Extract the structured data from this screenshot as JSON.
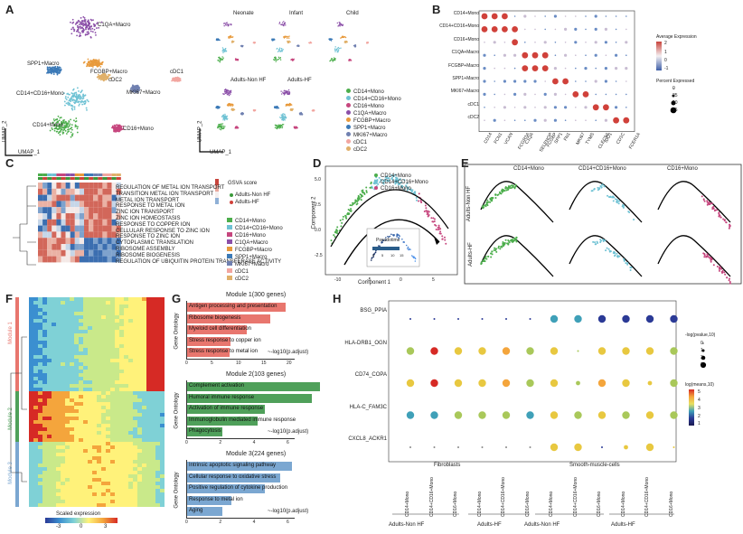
{
  "panels": {
    "a": "A",
    "b": "B",
    "c": "C",
    "d": "D",
    "e": "E",
    "f": "F",
    "g": "G",
    "h": "H"
  },
  "umap": {
    "xlabel": "UMAP_1",
    "ylabel": "UMAP_2",
    "labels": {
      "c1qa": "C1QA+Macro",
      "spp1": "SPP1+Macro",
      "fcgbp": "FCGBP+Macro",
      "cdc2": "cDC2",
      "cdc1": "cDC1",
      "cd14cd16": "CD14+CD16+Mono",
      "mki67": "MKI67+Macro",
      "cd14": "CD14+Mono",
      "cd16": "CD16+Mono"
    },
    "groups": [
      "Neonate",
      "Infant",
      "Child",
      "Adults-Non HF",
      "Adults-HF"
    ],
    "legend": [
      "CD14+Mono",
      "CD14+CD16+Mono",
      "CD16+Mono",
      "C1QA+Macro",
      "FCGBP+Macro",
      "SPP1+Macro",
      "MKI67+Macro",
      "cDC1",
      "cDC2"
    ],
    "colors": [
      "#4cae4c",
      "#6fc2d4",
      "#c6467e",
      "#8b4fa8",
      "#e89a3c",
      "#3c7ab7",
      "#7080b0",
      "#f2a6a0",
      "#e0b06a"
    ]
  },
  "dotplot": {
    "rows": [
      "CD14+Mono",
      "CD14+CD16+Mono",
      "CD16+Mono",
      "C1QA+Macro",
      "FCGBP+Macro",
      "SPP1+Macro",
      "MKI67+Macro",
      "cDC1",
      "cDC2"
    ],
    "cols": [
      "CD14",
      "FCN1",
      "VCAN",
      "FCGR3A",
      "C1QA",
      "SELENOP",
      "FCGBP",
      "SPP1",
      "FN1",
      "MKI67",
      "TYMS",
      "CLEC9A",
      "IDO1",
      "CD1C",
      "FCER1A"
    ],
    "avg_title": "Average Expression",
    "avg_ticks": [
      "2",
      "1",
      "0",
      "-1"
    ],
    "pct_title": "Percent Expressed",
    "pct_ticks": [
      "0",
      "25",
      "50",
      "75"
    ]
  },
  "heatmap": {
    "pathways": [
      "REGULATION OF METAL ION TRANSPORT",
      "TRANSITION METAL ION TRANSPORT",
      "METAL ION TRANSPORT",
      "RESPONSE TO METAL ION",
      "ZINC ION TRANSPORT",
      "ZINC ION HOMEOSTASIS",
      "RESPONSE TO COPPER ION",
      "CELLULAR RESPONSE TO ZINC ION",
      "RESPONSE TO ZINC ION",
      "CYTOPLASMIC TRANSLATION",
      "RIBOSOME ASSEMBLY",
      "RIBOSOME BIOGENESIS",
      "REGULATION OF UBIQUITIN PROTEIN TRANSFERASE ACTIVITY"
    ],
    "score_title": "GSVA score",
    "groups": [
      "Adults-Non HF",
      "Adults-HF"
    ],
    "cells": [
      "CD14+Mono",
      "CD14+CD16+Mono",
      "CD16+Mono",
      "C1QA+Macro",
      "FCGBP+Macro",
      "SPP1+Macro",
      "MKI67+Macro",
      "cDC1",
      "cDC2"
    ]
  },
  "trajectory": {
    "legend": [
      "CD14+Mono",
      "CD14+CD16+Mono",
      "CD16+Mono"
    ],
    "xlabel": "Component 1",
    "ylabel": "Component 2",
    "inset": "Pseudotime",
    "xticks": [
      "-10",
      "-5",
      "0",
      "5"
    ],
    "yticks": [
      "5.0",
      "2.5",
      "0.0",
      "-2.5"
    ],
    "inset_ticks": [
      "0",
      "5",
      "10",
      "15"
    ]
  },
  "facet": {
    "cols": [
      "CD14+Mono",
      "CD14+CD16+Mono",
      "CD16+Mono"
    ],
    "rows": [
      "Adults-Non HF",
      "Adults-HF"
    ]
  },
  "modules": {
    "labels": [
      "Module 1",
      "Module 2",
      "Module 3"
    ],
    "scale_title": "Scaled expression",
    "scale_ticks": [
      "-3",
      "0",
      "3"
    ]
  },
  "go": {
    "ylabel": "Gene Ontology",
    "modules": [
      {
        "title": "Module 1(300 genes)",
        "terms": [
          "Antigen processing and presentation",
          "Ribosome biogenesis",
          "Myeloid cell differentiation",
          "Stress response to copper ion",
          "Stress response to metal ion"
        ],
        "values": [
          19.5,
          16.5,
          11.8,
          8.6,
          8.4
        ],
        "ticks": [
          "0",
          "5",
          "10",
          "15",
          "20"
        ],
        "xlabel": "-log10(p.adjust)",
        "color": "#e8766e"
      },
      {
        "title": "Module 2(103 genes)",
        "terms": [
          "Complement activation",
          "Humoral immune response",
          "Activation of immune response",
          "Immunoglobulin mediated immune response",
          "Phagocytosis"
        ],
        "values": [
          7.9,
          7.4,
          4.6,
          4.2,
          2.1
        ],
        "ticks": [
          "0",
          "2",
          "4",
          "6"
        ],
        "xlabel": "-log10(p.adjust)",
        "color": "#4fa05a"
      },
      {
        "title": "Module 3(224 genes)",
        "terms": [
          "Intrinsic apoptotic signaling pathway",
          "Cellular response to oxidative stress",
          "Positive regulation of cytokine production",
          "Response to metal ion",
          "Aging"
        ],
        "values": [
          6.2,
          5.5,
          4.6,
          2.6,
          2.1
        ],
        "ticks": [
          "0",
          "2",
          "4",
          "6"
        ],
        "xlabel": "-log10(p.adjust)",
        "color": "#7ba7d1"
      }
    ]
  },
  "ccc": {
    "rows": [
      "BSG_PPIA",
      "HLA-DRB1_OGN",
      "CD74_COPA",
      "HLA-C_FAM3C",
      "CXCL8_ACKR1"
    ],
    "cols": [
      "CD14+Mono",
      "CD14+CD16+Mono",
      "CD16+Mono",
      "CD14+Mono",
      "CD14+CD16+Mono",
      "CD16+Mono",
      "CD14+Mono",
      "CD14+CD16+Mono",
      "CD16+Mono",
      "CD14+Mono",
      "CD14+CD16+Mono",
      "CD16+Mono"
    ],
    "top_groups": [
      "Fibroblasts",
      "Smooth-muscle-cells"
    ],
    "bottom_groups": [
      "Adults-Non HF",
      "Adults-HF",
      "Adults-Non HF",
      "Adults-HF"
    ],
    "pval_title": "-log(pvalue,10)",
    "pval_ticks": [
      "0",
      "1",
      "2",
      "3"
    ],
    "mean_title": "log(means,10)",
    "mean_ticks": [
      "5",
      "4",
      "3",
      "2",
      "1"
    ]
  }
}
